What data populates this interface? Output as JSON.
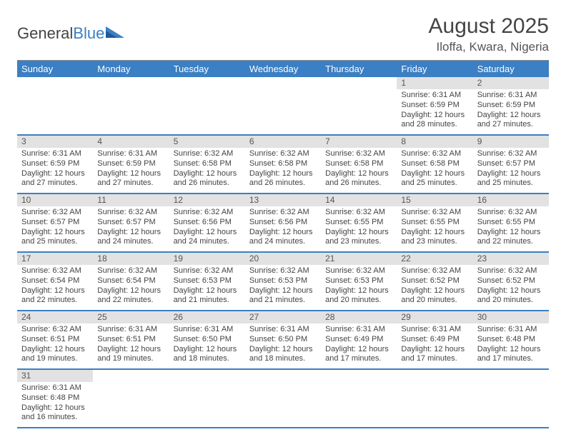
{
  "brand": {
    "part1": "General",
    "part2": "Blue"
  },
  "title": "August 2025",
  "location": "Iloffa, Kwara, Nigeria",
  "colors": {
    "header_bg": "#3b7fc4",
    "header_fg": "#ffffff",
    "daynum_bg": "#e2e2e2",
    "border": "#3b7fc4"
  },
  "weekdays": [
    "Sunday",
    "Monday",
    "Tuesday",
    "Wednesday",
    "Thursday",
    "Friday",
    "Saturday"
  ],
  "weeks": [
    [
      null,
      null,
      null,
      null,
      null,
      {
        "day": "1",
        "sunrise": "Sunrise: 6:31 AM",
        "sunset": "Sunset: 6:59 PM",
        "daylight": "Daylight: 12 hours and 28 minutes."
      },
      {
        "day": "2",
        "sunrise": "Sunrise: 6:31 AM",
        "sunset": "Sunset: 6:59 PM",
        "daylight": "Daylight: 12 hours and 27 minutes."
      }
    ],
    [
      {
        "day": "3",
        "sunrise": "Sunrise: 6:31 AM",
        "sunset": "Sunset: 6:59 PM",
        "daylight": "Daylight: 12 hours and 27 minutes."
      },
      {
        "day": "4",
        "sunrise": "Sunrise: 6:31 AM",
        "sunset": "Sunset: 6:59 PM",
        "daylight": "Daylight: 12 hours and 27 minutes."
      },
      {
        "day": "5",
        "sunrise": "Sunrise: 6:32 AM",
        "sunset": "Sunset: 6:58 PM",
        "daylight": "Daylight: 12 hours and 26 minutes."
      },
      {
        "day": "6",
        "sunrise": "Sunrise: 6:32 AM",
        "sunset": "Sunset: 6:58 PM",
        "daylight": "Daylight: 12 hours and 26 minutes."
      },
      {
        "day": "7",
        "sunrise": "Sunrise: 6:32 AM",
        "sunset": "Sunset: 6:58 PM",
        "daylight": "Daylight: 12 hours and 26 minutes."
      },
      {
        "day": "8",
        "sunrise": "Sunrise: 6:32 AM",
        "sunset": "Sunset: 6:58 PM",
        "daylight": "Daylight: 12 hours and 25 minutes."
      },
      {
        "day": "9",
        "sunrise": "Sunrise: 6:32 AM",
        "sunset": "Sunset: 6:57 PM",
        "daylight": "Daylight: 12 hours and 25 minutes."
      }
    ],
    [
      {
        "day": "10",
        "sunrise": "Sunrise: 6:32 AM",
        "sunset": "Sunset: 6:57 PM",
        "daylight": "Daylight: 12 hours and 25 minutes."
      },
      {
        "day": "11",
        "sunrise": "Sunrise: 6:32 AM",
        "sunset": "Sunset: 6:57 PM",
        "daylight": "Daylight: 12 hours and 24 minutes."
      },
      {
        "day": "12",
        "sunrise": "Sunrise: 6:32 AM",
        "sunset": "Sunset: 6:56 PM",
        "daylight": "Daylight: 12 hours and 24 minutes."
      },
      {
        "day": "13",
        "sunrise": "Sunrise: 6:32 AM",
        "sunset": "Sunset: 6:56 PM",
        "daylight": "Daylight: 12 hours and 24 minutes."
      },
      {
        "day": "14",
        "sunrise": "Sunrise: 6:32 AM",
        "sunset": "Sunset: 6:55 PM",
        "daylight": "Daylight: 12 hours and 23 minutes."
      },
      {
        "day": "15",
        "sunrise": "Sunrise: 6:32 AM",
        "sunset": "Sunset: 6:55 PM",
        "daylight": "Daylight: 12 hours and 23 minutes."
      },
      {
        "day": "16",
        "sunrise": "Sunrise: 6:32 AM",
        "sunset": "Sunset: 6:55 PM",
        "daylight": "Daylight: 12 hours and 22 minutes."
      }
    ],
    [
      {
        "day": "17",
        "sunrise": "Sunrise: 6:32 AM",
        "sunset": "Sunset: 6:54 PM",
        "daylight": "Daylight: 12 hours and 22 minutes."
      },
      {
        "day": "18",
        "sunrise": "Sunrise: 6:32 AM",
        "sunset": "Sunset: 6:54 PM",
        "daylight": "Daylight: 12 hours and 22 minutes."
      },
      {
        "day": "19",
        "sunrise": "Sunrise: 6:32 AM",
        "sunset": "Sunset: 6:53 PM",
        "daylight": "Daylight: 12 hours and 21 minutes."
      },
      {
        "day": "20",
        "sunrise": "Sunrise: 6:32 AM",
        "sunset": "Sunset: 6:53 PM",
        "daylight": "Daylight: 12 hours and 21 minutes."
      },
      {
        "day": "21",
        "sunrise": "Sunrise: 6:32 AM",
        "sunset": "Sunset: 6:53 PM",
        "daylight": "Daylight: 12 hours and 20 minutes."
      },
      {
        "day": "22",
        "sunrise": "Sunrise: 6:32 AM",
        "sunset": "Sunset: 6:52 PM",
        "daylight": "Daylight: 12 hours and 20 minutes."
      },
      {
        "day": "23",
        "sunrise": "Sunrise: 6:32 AM",
        "sunset": "Sunset: 6:52 PM",
        "daylight": "Daylight: 12 hours and 20 minutes."
      }
    ],
    [
      {
        "day": "24",
        "sunrise": "Sunrise: 6:32 AM",
        "sunset": "Sunset: 6:51 PM",
        "daylight": "Daylight: 12 hours and 19 minutes."
      },
      {
        "day": "25",
        "sunrise": "Sunrise: 6:31 AM",
        "sunset": "Sunset: 6:51 PM",
        "daylight": "Daylight: 12 hours and 19 minutes."
      },
      {
        "day": "26",
        "sunrise": "Sunrise: 6:31 AM",
        "sunset": "Sunset: 6:50 PM",
        "daylight": "Daylight: 12 hours and 18 minutes."
      },
      {
        "day": "27",
        "sunrise": "Sunrise: 6:31 AM",
        "sunset": "Sunset: 6:50 PM",
        "daylight": "Daylight: 12 hours and 18 minutes."
      },
      {
        "day": "28",
        "sunrise": "Sunrise: 6:31 AM",
        "sunset": "Sunset: 6:49 PM",
        "daylight": "Daylight: 12 hours and 17 minutes."
      },
      {
        "day": "29",
        "sunrise": "Sunrise: 6:31 AM",
        "sunset": "Sunset: 6:49 PM",
        "daylight": "Daylight: 12 hours and 17 minutes."
      },
      {
        "day": "30",
        "sunrise": "Sunrise: 6:31 AM",
        "sunset": "Sunset: 6:48 PM",
        "daylight": "Daylight: 12 hours and 17 minutes."
      }
    ],
    [
      {
        "day": "31",
        "sunrise": "Sunrise: 6:31 AM",
        "sunset": "Sunset: 6:48 PM",
        "daylight": "Daylight: 12 hours and 16 minutes."
      },
      null,
      null,
      null,
      null,
      null,
      null
    ]
  ]
}
